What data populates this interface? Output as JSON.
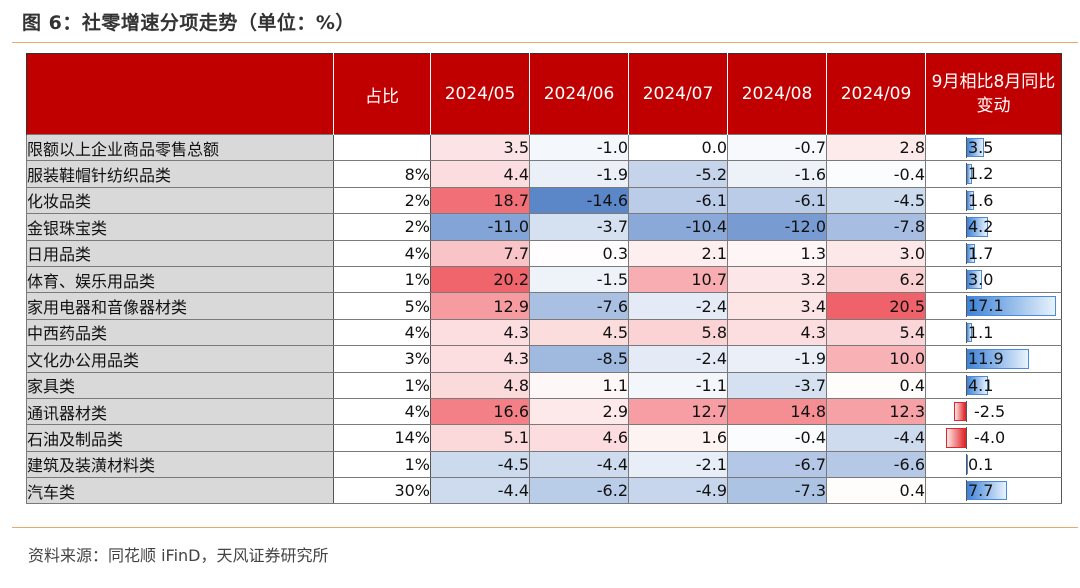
{
  "title": "图 6：社零增速分项走势（单位：%）",
  "source": "资料来源：同花顺 iFinD，天风证券研究所",
  "colors": {
    "header_bg": "#c00000",
    "pos_max": "#f0626a",
    "neg_max": "#5b86c8"
  },
  "headers": [
    "",
    "占比",
    "2024/05",
    "2024/06",
    "2024/07",
    "2024/08",
    "2024/09",
    "9月相比8月同比变动"
  ],
  "rows": [
    {
      "name": "限额以上企业商品零售总额",
      "share": "",
      "values": [
        "3.5",
        "-1.0",
        "0.0",
        "-0.7",
        "2.8"
      ],
      "change": "3.5"
    },
    {
      "name": "服装鞋帽针纺织品类",
      "share": "8%",
      "values": [
        "4.4",
        "-1.9",
        "-5.2",
        "-1.6",
        "-0.4"
      ],
      "change": "1.2"
    },
    {
      "name": "化妆品类",
      "share": "2%",
      "values": [
        "18.7",
        "-14.6",
        "-6.1",
        "-6.1",
        "-4.5"
      ],
      "change": "1.6"
    },
    {
      "name": "金银珠宝类",
      "share": "2%",
      "values": [
        "-11.0",
        "-3.7",
        "-10.4",
        "-12.0",
        "-7.8"
      ],
      "change": "4.2"
    },
    {
      "name": "日用品类",
      "share": "4%",
      "values": [
        "7.7",
        "0.3",
        "2.1",
        "1.3",
        "3.0"
      ],
      "change": "1.7"
    },
    {
      "name": "体育、娱乐用品类",
      "share": "1%",
      "values": [
        "20.2",
        "-1.5",
        "10.7",
        "3.2",
        "6.2"
      ],
      "change": "3.0"
    },
    {
      "name": "家用电器和音像器材类",
      "share": "5%",
      "values": [
        "12.9",
        "-7.6",
        "-2.4",
        "3.4",
        "20.5"
      ],
      "change": "17.1"
    },
    {
      "name": "中西药品类",
      "share": "4%",
      "values": [
        "4.3",
        "4.5",
        "5.8",
        "4.3",
        "5.4"
      ],
      "change": "1.1"
    },
    {
      "name": "文化办公用品类",
      "share": "3%",
      "values": [
        "4.3",
        "-8.5",
        "-2.4",
        "-1.9",
        "10.0"
      ],
      "change": "11.9"
    },
    {
      "name": "家具类",
      "share": "1%",
      "values": [
        "4.8",
        "1.1",
        "-1.1",
        "-3.7",
        "0.4"
      ],
      "change": "4.1"
    },
    {
      "name": "通讯器材类",
      "share": "4%",
      "values": [
        "16.6",
        "2.9",
        "12.7",
        "14.8",
        "12.3"
      ],
      "change": "-2.5"
    },
    {
      "name": "石油及制品类",
      "share": "14%",
      "values": [
        "5.1",
        "4.6",
        "1.6",
        "-0.4",
        "-4.4"
      ],
      "change": "-4.0"
    },
    {
      "name": "建筑及装潢材料类",
      "share": "1%",
      "values": [
        "-4.5",
        "-4.4",
        "-2.1",
        "-6.7",
        "-6.6"
      ],
      "change": "0.1"
    },
    {
      "name": "汽车类",
      "share": "30%",
      "values": [
        "-4.4",
        "-6.2",
        "-4.9",
        "-7.3",
        "0.4"
      ],
      "change": "7.7"
    }
  ]
}
